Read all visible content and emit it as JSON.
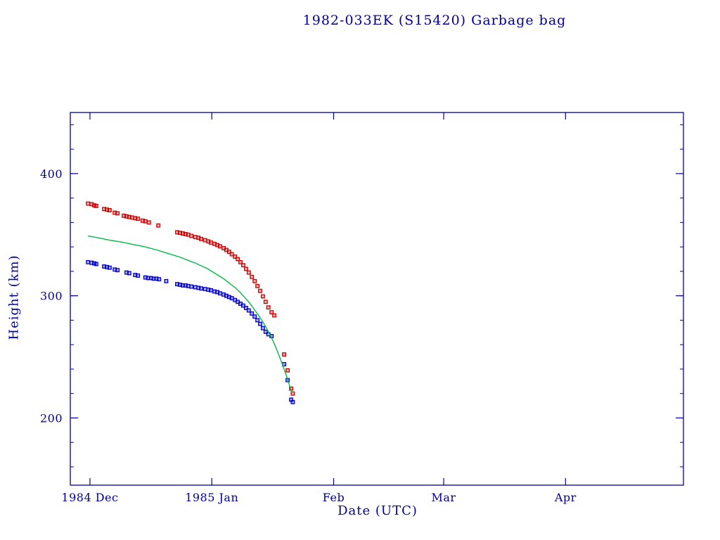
{
  "chart_data": {
    "type": "scatter",
    "title": "1982-033EK (S15420) Garbage bag",
    "xlabel": "Date (UTC)",
    "ylabel": "Height (km)",
    "x_axis_note": "x values are days since 1984 Nov 26; plot spans 1984 Nov 26 to 1985 Apr 30",
    "xlim": [
      0,
      156
    ],
    "ylim": [
      145,
      450
    ],
    "grid": false,
    "legend": "none",
    "background": "#ffffff",
    "axis_color": "#000099",
    "x_ticks": [
      {
        "pos": 5,
        "label": "1984 Dec"
      },
      {
        "pos": 36,
        "label": "1985 Jan"
      },
      {
        "pos": 67,
        "label": "Feb"
      },
      {
        "pos": 95,
        "label": "Mar"
      },
      {
        "pos": 126,
        "label": "Apr"
      }
    ],
    "y_ticks": [
      {
        "pos": 200,
        "label": "200"
      },
      {
        "pos": 300,
        "label": "300"
      },
      {
        "pos": 400,
        "label": "400"
      }
    ],
    "y_minor_ticks": {
      "from": 160,
      "to": 440,
      "step": 20
    },
    "series": [
      {
        "name": "apogee-height",
        "type": "scatter",
        "marker": "open-square",
        "color": "#cc0000",
        "points": [
          [
            4.5,
            375.5
          ],
          [
            5.4,
            375
          ],
          [
            6.1,
            374
          ],
          [
            6.6,
            373.5
          ],
          [
            8.6,
            371
          ],
          [
            9.3,
            370.5
          ],
          [
            10.0,
            370
          ],
          [
            11.3,
            368
          ],
          [
            12.0,
            367.5
          ],
          [
            13.6,
            365.5
          ],
          [
            14.3,
            365
          ],
          [
            15.0,
            364.5
          ],
          [
            15.7,
            364
          ],
          [
            16.5,
            363.5
          ],
          [
            17.2,
            363
          ],
          [
            18.4,
            361.5
          ],
          [
            19.1,
            361
          ],
          [
            20.0,
            360
          ],
          [
            22.4,
            357.5
          ],
          [
            27.2,
            352
          ],
          [
            27.9,
            351.5
          ],
          [
            28.6,
            351
          ],
          [
            29.3,
            350.5
          ],
          [
            30.0,
            350
          ],
          [
            30.8,
            349
          ],
          [
            31.8,
            348
          ],
          [
            32.6,
            347.5
          ],
          [
            33.3,
            346.5
          ],
          [
            34.3,
            345.5
          ],
          [
            35.1,
            344.5
          ],
          [
            35.8,
            343.5
          ],
          [
            36.7,
            342.5
          ],
          [
            37.4,
            341.5
          ],
          [
            38.1,
            340.5
          ],
          [
            39.0,
            339
          ],
          [
            39.7,
            337.5
          ],
          [
            40.4,
            336
          ],
          [
            41.1,
            334
          ],
          [
            41.9,
            332
          ],
          [
            42.6,
            330
          ],
          [
            43.3,
            327.5
          ],
          [
            44.0,
            325
          ],
          [
            44.7,
            322
          ],
          [
            45.4,
            319
          ],
          [
            46.2,
            315.5
          ],
          [
            46.9,
            312
          ],
          [
            47.6,
            308
          ],
          [
            48.3,
            304
          ],
          [
            49.0,
            299.5
          ],
          [
            49.7,
            295
          ],
          [
            50.4,
            290.5
          ],
          [
            51.2,
            286.5
          ],
          [
            51.9,
            284
          ],
          [
            54.4,
            252
          ],
          [
            55.3,
            239
          ],
          [
            56.2,
            224
          ],
          [
            56.6,
            220
          ]
        ]
      },
      {
        "name": "perigee-height",
        "type": "scatter",
        "marker": "open-square",
        "color": "#0000cc",
        "points": [
          [
            4.5,
            327.5
          ],
          [
            5.4,
            327
          ],
          [
            6.1,
            326.5
          ],
          [
            6.6,
            326
          ],
          [
            8.6,
            324
          ],
          [
            9.3,
            323.5
          ],
          [
            10.0,
            323
          ],
          [
            11.3,
            321.5
          ],
          [
            12.0,
            321
          ],
          [
            14.3,
            319
          ],
          [
            15.0,
            318.5
          ],
          [
            16.5,
            317
          ],
          [
            17.2,
            316.5
          ],
          [
            19.1,
            315
          ],
          [
            19.8,
            314.5
          ],
          [
            20.5,
            314.5
          ],
          [
            21.2,
            314
          ],
          [
            21.9,
            314
          ],
          [
            22.6,
            313.5
          ],
          [
            24.4,
            312
          ],
          [
            27.2,
            309.5
          ],
          [
            27.9,
            309
          ],
          [
            28.6,
            308.5
          ],
          [
            29.3,
            308.5
          ],
          [
            30.0,
            308
          ],
          [
            30.8,
            307.5
          ],
          [
            31.8,
            307
          ],
          [
            32.6,
            306.5
          ],
          [
            33.3,
            306
          ],
          [
            34.3,
            305.5
          ],
          [
            35.1,
            305
          ],
          [
            35.8,
            304.5
          ],
          [
            36.7,
            303.5
          ],
          [
            37.4,
            303
          ],
          [
            38.1,
            302
          ],
          [
            39.0,
            301
          ],
          [
            39.7,
            300
          ],
          [
            40.4,
            299
          ],
          [
            41.1,
            298
          ],
          [
            41.9,
            296.5
          ],
          [
            42.6,
            295
          ],
          [
            43.3,
            293.5
          ],
          [
            44.0,
            292
          ],
          [
            44.7,
            290
          ],
          [
            45.4,
            288
          ],
          [
            46.2,
            285.5
          ],
          [
            46.9,
            283
          ],
          [
            47.6,
            280
          ],
          [
            48.3,
            277
          ],
          [
            49.0,
            273.5
          ],
          [
            49.7,
            270.5
          ],
          [
            50.4,
            268.5
          ],
          [
            51.2,
            267
          ],
          [
            54.4,
            244
          ],
          [
            55.3,
            231
          ],
          [
            56.2,
            215
          ],
          [
            56.6,
            213
          ]
        ]
      },
      {
        "name": "mean-height-model",
        "type": "line",
        "marker": "none",
        "color": "#00bb44",
        "points": [
          [
            4.5,
            349
          ],
          [
            7,
            347.5
          ],
          [
            10,
            345.5
          ],
          [
            13,
            344
          ],
          [
            16,
            342
          ],
          [
            19,
            340
          ],
          [
            22,
            337.5
          ],
          [
            25,
            334.5
          ],
          [
            28,
            331.5
          ],
          [
            30,
            329
          ],
          [
            32,
            326.5
          ],
          [
            33,
            325
          ],
          [
            34,
            323.5
          ],
          [
            35,
            322
          ],
          [
            36,
            320
          ],
          [
            37,
            318
          ],
          [
            38,
            316
          ],
          [
            39,
            314
          ],
          [
            40,
            311.5
          ],
          [
            41,
            309
          ],
          [
            42,
            306.5
          ],
          [
            43,
            303.5
          ],
          [
            44,
            300
          ],
          [
            45,
            296.5
          ],
          [
            46,
            292.5
          ],
          [
            47,
            288
          ],
          [
            48,
            283.5
          ],
          [
            49,
            278.5
          ],
          [
            50,
            273
          ],
          [
            51,
            267
          ],
          [
            52,
            260
          ],
          [
            53,
            252
          ],
          [
            54,
            243.5
          ],
          [
            55,
            234.5
          ],
          [
            55.8,
            226.5
          ],
          [
            56.3,
            221
          ]
        ]
      }
    ]
  }
}
